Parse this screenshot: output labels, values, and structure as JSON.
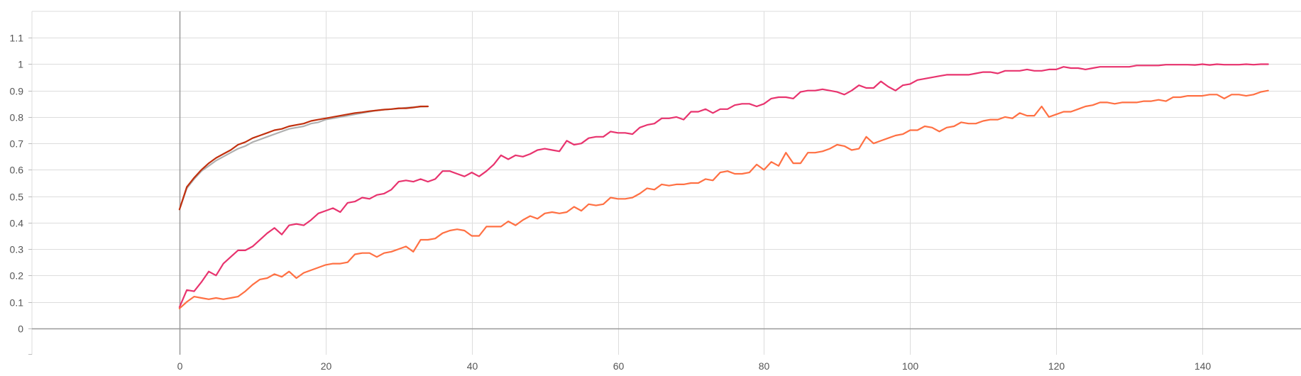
{
  "chart_data": {
    "type": "line",
    "title": "",
    "xlabel": "",
    "ylabel": "",
    "xlim": [
      -20.2,
      153.5
    ],
    "ylim": [
      -0.1,
      1.2
    ],
    "x_ticks": [
      0,
      20,
      40,
      60,
      80,
      100,
      120,
      140
    ],
    "y_ticks": [
      0,
      0.1,
      0.2,
      0.3,
      0.4,
      0.5,
      0.6,
      0.7,
      0.8,
      0.9,
      1,
      1.1
    ],
    "grid": true,
    "series": [
      {
        "color": "#e8336e",
        "x": [
          0,
          1,
          2,
          3,
          4,
          5,
          6,
          7,
          8,
          9,
          10,
          11,
          12,
          13,
          14,
          15,
          16,
          17,
          18,
          19,
          20,
          21,
          22,
          23,
          24,
          25,
          26,
          27,
          28,
          29,
          30,
          31,
          32,
          33,
          34,
          35,
          36,
          37,
          38,
          39,
          40,
          41,
          42,
          43,
          44,
          45,
          46,
          47,
          48,
          49,
          50,
          51,
          52,
          53,
          54,
          55,
          56,
          57,
          58,
          59,
          60,
          61,
          62,
          63,
          64,
          65,
          66,
          67,
          68,
          69,
          70,
          71,
          72,
          73,
          74,
          75,
          76,
          77,
          78,
          79,
          80,
          81,
          82,
          83,
          84,
          85,
          86,
          87,
          88,
          89,
          90,
          91,
          92,
          93,
          94,
          95,
          96,
          97,
          98,
          99,
          100,
          101,
          102,
          103,
          104,
          105,
          106,
          107,
          108,
          109,
          110,
          111,
          112,
          113,
          114,
          115,
          116,
          117,
          118,
          119,
          120,
          121,
          122,
          123,
          124,
          125,
          126,
          127,
          128,
          129,
          130,
          131,
          132,
          133,
          134,
          135,
          136,
          137,
          138,
          139,
          140,
          141,
          142,
          143,
          144,
          145,
          146,
          147,
          148,
          149
        ],
        "values": [
          0.08,
          0.145,
          0.14,
          0.175,
          0.215,
          0.2,
          0.245,
          0.27,
          0.295,
          0.295,
          0.31,
          0.335,
          0.36,
          0.38,
          0.355,
          0.39,
          0.395,
          0.39,
          0.41,
          0.435,
          0.445,
          0.455,
          0.44,
          0.475,
          0.48,
          0.495,
          0.49,
          0.505,
          0.51,
          0.525,
          0.555,
          0.56,
          0.555,
          0.565,
          0.555,
          0.565,
          0.595,
          0.595,
          0.585,
          0.575,
          0.59,
          0.575,
          0.595,
          0.62,
          0.655,
          0.64,
          0.655,
          0.65,
          0.66,
          0.675,
          0.68,
          0.675,
          0.67,
          0.71,
          0.695,
          0.7,
          0.72,
          0.725,
          0.725,
          0.745,
          0.74,
          0.74,
          0.735,
          0.76,
          0.77,
          0.775,
          0.795,
          0.795,
          0.8,
          0.79,
          0.82,
          0.82,
          0.83,
          0.815,
          0.83,
          0.83,
          0.845,
          0.85,
          0.85,
          0.84,
          0.85,
          0.87,
          0.875,
          0.875,
          0.87,
          0.895,
          0.9,
          0.9,
          0.905,
          0.9,
          0.895,
          0.885,
          0.9,
          0.92,
          0.91,
          0.91,
          0.935,
          0.915,
          0.9,
          0.92,
          0.925,
          0.94,
          0.945,
          0.95,
          0.955,
          0.96,
          0.96,
          0.96,
          0.96,
          0.965,
          0.97,
          0.97,
          0.965,
          0.975,
          0.975,
          0.975,
          0.98,
          0.975,
          0.975,
          0.98,
          0.98,
          0.99,
          0.985,
          0.985,
          0.98,
          0.985,
          0.99,
          0.99,
          0.99,
          0.99,
          0.99,
          0.995,
          0.995,
          0.995,
          0.995,
          0.998,
          0.998,
          0.998,
          0.998,
          0.997,
          1.0,
          0.997,
          1.0,
          0.998,
          0.998,
          0.998,
          1.0,
          0.998,
          1.0,
          1.0
        ]
      },
      {
        "color": "#ff7043",
        "x": [
          0,
          1,
          2,
          3,
          4,
          5,
          6,
          7,
          8,
          9,
          10,
          11,
          12,
          13,
          14,
          15,
          16,
          17,
          18,
          19,
          20,
          21,
          22,
          23,
          24,
          25,
          26,
          27,
          28,
          29,
          30,
          31,
          32,
          33,
          34,
          35,
          36,
          37,
          38,
          39,
          40,
          41,
          42,
          43,
          44,
          45,
          46,
          47,
          48,
          49,
          50,
          51,
          52,
          53,
          54,
          55,
          56,
          57,
          58,
          59,
          60,
          61,
          62,
          63,
          64,
          65,
          66,
          67,
          68,
          69,
          70,
          71,
          72,
          73,
          74,
          75,
          76,
          77,
          78,
          79,
          80,
          81,
          82,
          83,
          84,
          85,
          86,
          87,
          88,
          89,
          90,
          91,
          92,
          93,
          94,
          95,
          96,
          97,
          98,
          99,
          100,
          101,
          102,
          103,
          104,
          105,
          106,
          107,
          108,
          109,
          110,
          111,
          112,
          113,
          114,
          115,
          116,
          117,
          118,
          119,
          120,
          121,
          122,
          123,
          124,
          125,
          126,
          127,
          128,
          129,
          130,
          131,
          132,
          133,
          134,
          135,
          136,
          137,
          138,
          139,
          140,
          141,
          142,
          143,
          144,
          145,
          146,
          147,
          148,
          149
        ],
        "values": [
          0.075,
          0.1,
          0.12,
          0.115,
          0.11,
          0.115,
          0.11,
          0.115,
          0.12,
          0.14,
          0.165,
          0.185,
          0.19,
          0.205,
          0.195,
          0.215,
          0.19,
          0.21,
          0.22,
          0.23,
          0.24,
          0.245,
          0.245,
          0.25,
          0.28,
          0.285,
          0.285,
          0.27,
          0.285,
          0.29,
          0.3,
          0.31,
          0.29,
          0.335,
          0.335,
          0.34,
          0.36,
          0.37,
          0.375,
          0.37,
          0.35,
          0.35,
          0.385,
          0.385,
          0.385,
          0.405,
          0.39,
          0.41,
          0.425,
          0.415,
          0.435,
          0.44,
          0.435,
          0.44,
          0.46,
          0.445,
          0.47,
          0.465,
          0.47,
          0.495,
          0.49,
          0.49,
          0.495,
          0.51,
          0.53,
          0.525,
          0.545,
          0.54,
          0.545,
          0.545,
          0.55,
          0.55,
          0.565,
          0.56,
          0.59,
          0.595,
          0.585,
          0.585,
          0.59,
          0.62,
          0.6,
          0.63,
          0.615,
          0.665,
          0.625,
          0.625,
          0.665,
          0.665,
          0.67,
          0.68,
          0.695,
          0.69,
          0.675,
          0.68,
          0.725,
          0.7,
          0.71,
          0.72,
          0.73,
          0.735,
          0.75,
          0.75,
          0.765,
          0.76,
          0.745,
          0.76,
          0.765,
          0.78,
          0.775,
          0.775,
          0.785,
          0.79,
          0.79,
          0.8,
          0.795,
          0.815,
          0.805,
          0.805,
          0.84,
          0.8,
          0.81,
          0.82,
          0.82,
          0.83,
          0.84,
          0.845,
          0.855,
          0.855,
          0.85,
          0.855,
          0.855,
          0.855,
          0.86,
          0.86,
          0.865,
          0.86,
          0.875,
          0.875,
          0.88,
          0.88,
          0.88,
          0.885,
          0.885,
          0.87,
          0.885,
          0.885,
          0.88,
          0.885,
          0.895,
          0.9
        ]
      },
      {
        "color": "#b0b0b0",
        "x": [
          0,
          1,
          2,
          3,
          4,
          5,
          6,
          7,
          8,
          9,
          10,
          11,
          12,
          13,
          14,
          15,
          16,
          17,
          18,
          19,
          20,
          21,
          22,
          23,
          24,
          25,
          26,
          27,
          28,
          29,
          30,
          31,
          32,
          33,
          34
        ],
        "values": [
          0.45,
          0.53,
          0.565,
          0.595,
          0.615,
          0.635,
          0.65,
          0.665,
          0.68,
          0.69,
          0.705,
          0.715,
          0.725,
          0.735,
          0.745,
          0.755,
          0.76,
          0.765,
          0.775,
          0.78,
          0.79,
          0.795,
          0.8,
          0.805,
          0.81,
          0.815,
          0.82,
          0.825,
          0.828,
          0.83,
          0.832,
          0.835,
          0.837,
          0.839,
          0.84
        ]
      },
      {
        "color": "#c1300e",
        "x": [
          0,
          1,
          2,
          3,
          4,
          5,
          6,
          7,
          8,
          9,
          10,
          11,
          12,
          13,
          14,
          15,
          16,
          17,
          18,
          19,
          20,
          21,
          22,
          23,
          24,
          25,
          26,
          27,
          28,
          29,
          30,
          31,
          32,
          33,
          34
        ],
        "values": [
          0.45,
          0.535,
          0.57,
          0.6,
          0.625,
          0.645,
          0.66,
          0.675,
          0.695,
          0.705,
          0.72,
          0.73,
          0.74,
          0.75,
          0.755,
          0.765,
          0.77,
          0.775,
          0.785,
          0.79,
          0.795,
          0.8,
          0.805,
          0.81,
          0.815,
          0.818,
          0.822,
          0.825,
          0.828,
          0.83,
          0.833,
          0.833,
          0.836,
          0.84,
          0.84
        ]
      }
    ]
  }
}
